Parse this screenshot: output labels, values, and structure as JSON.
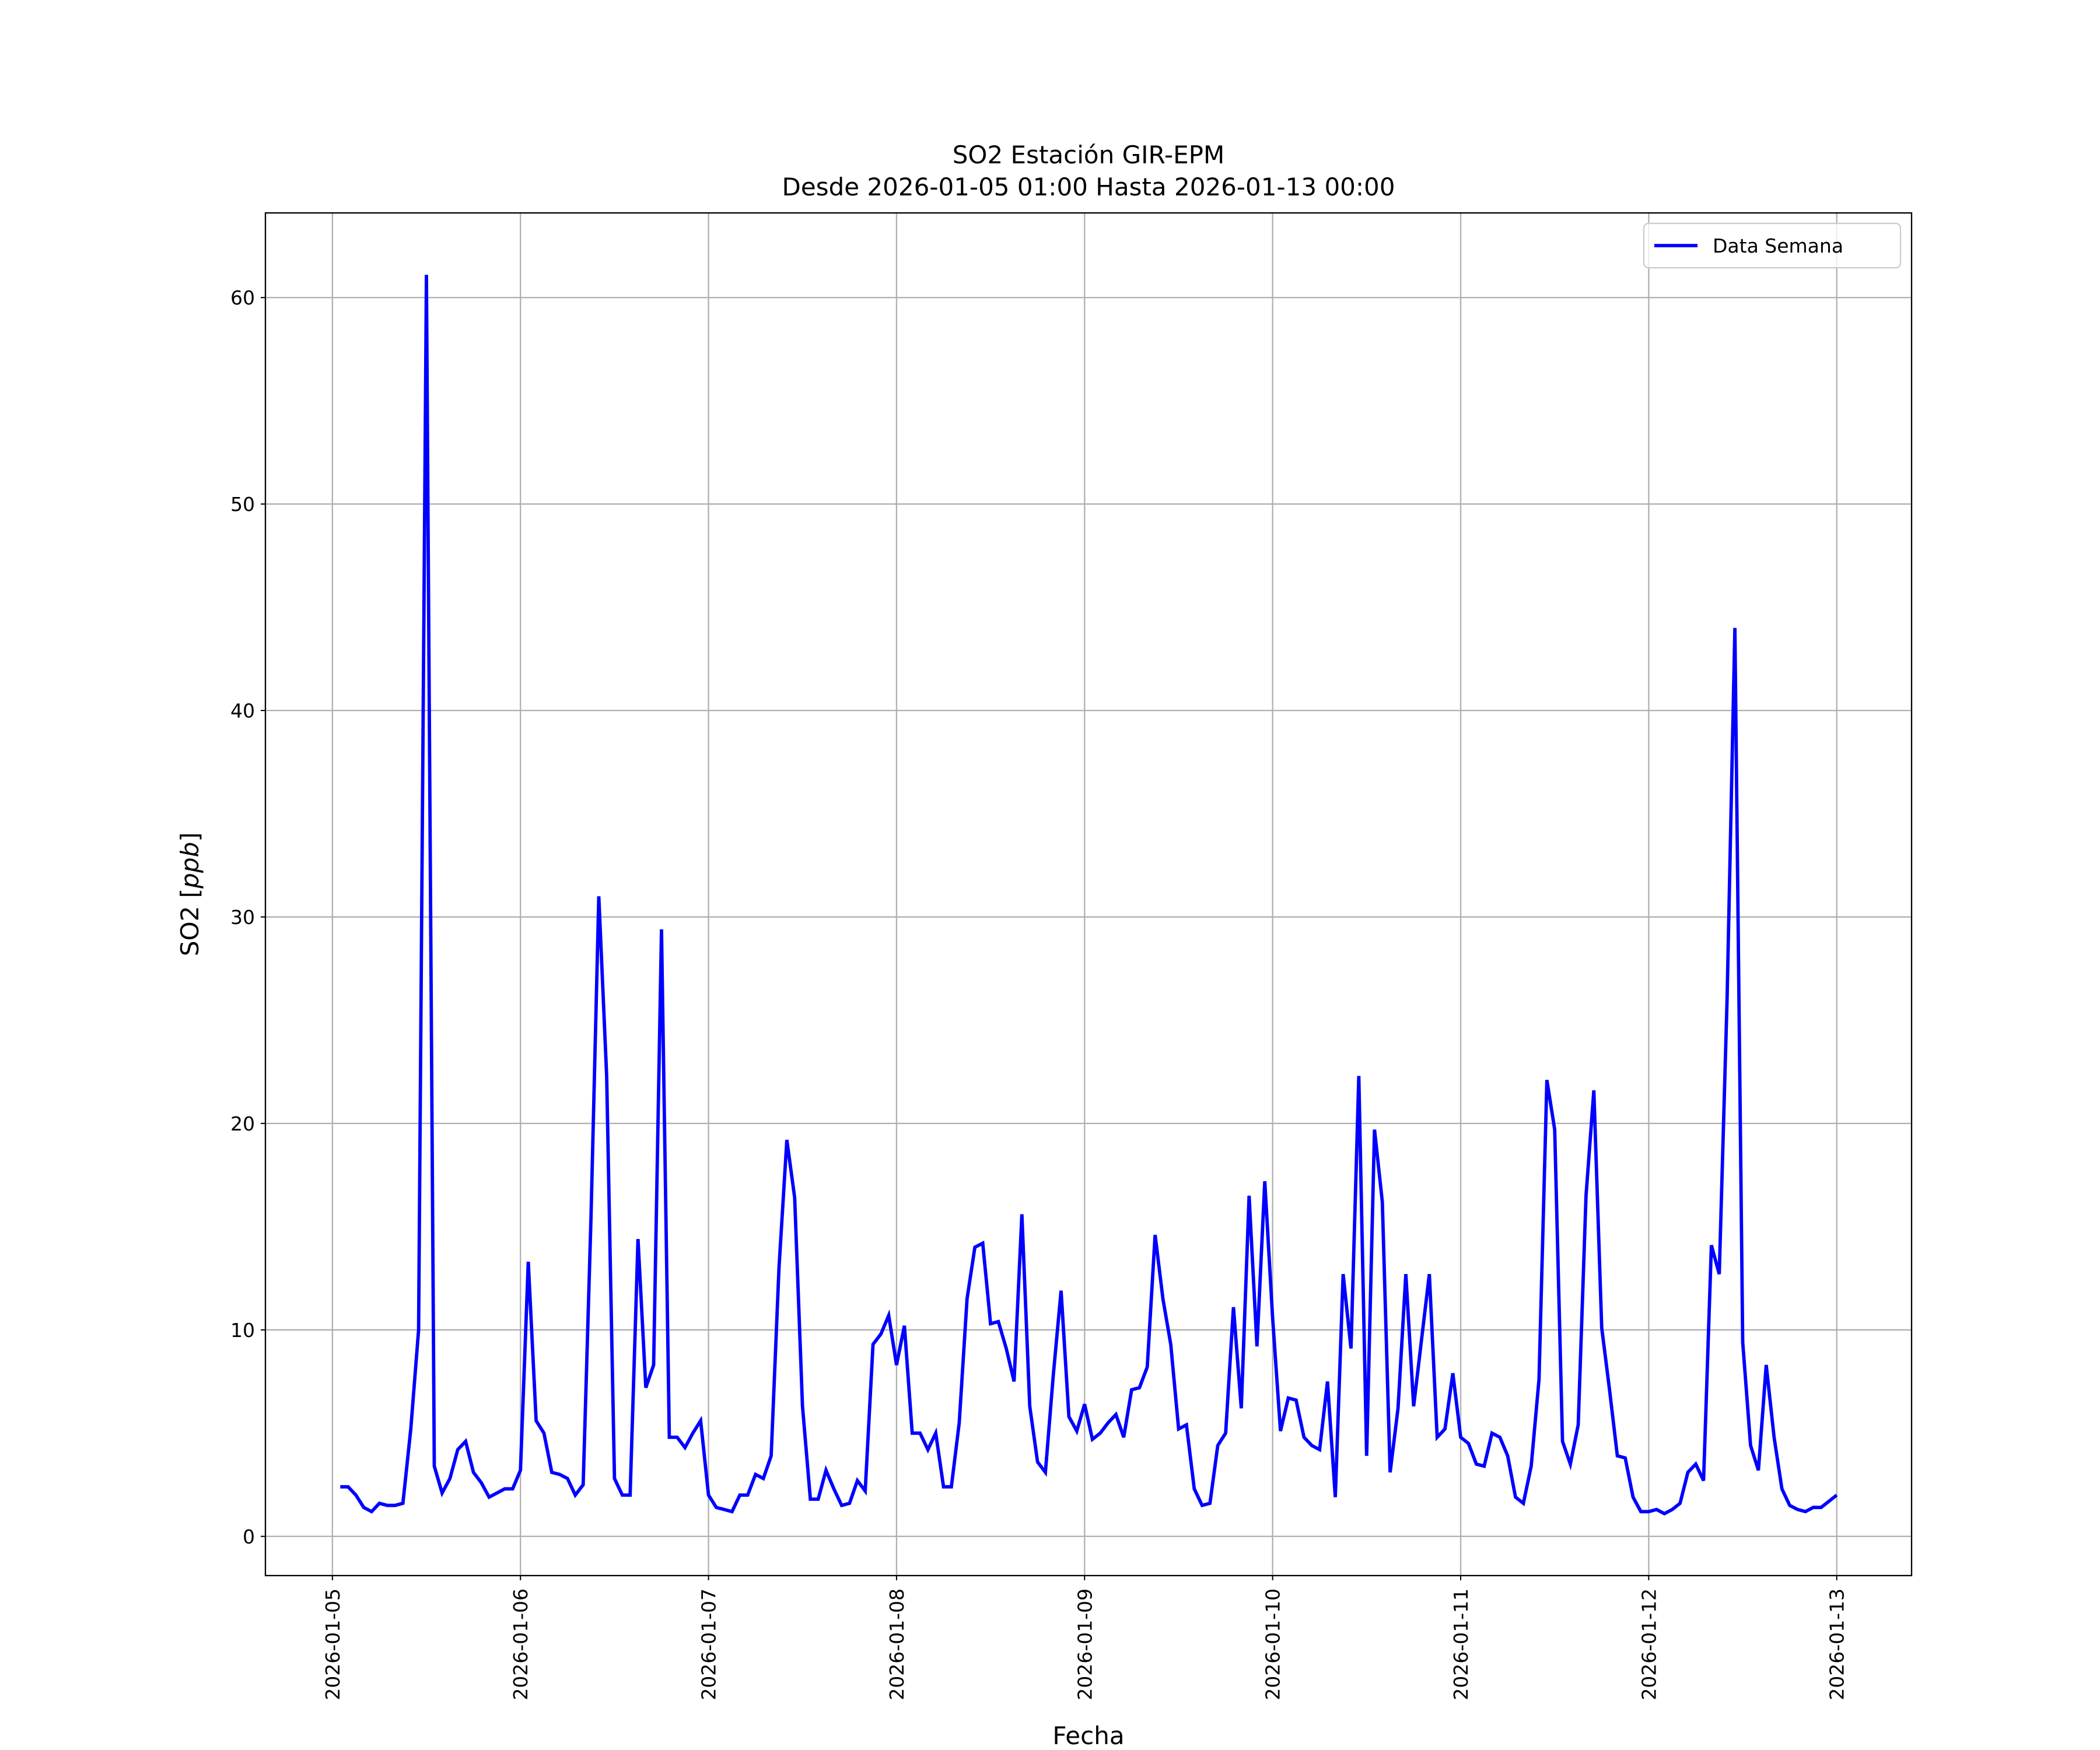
{
  "chart_data": {
    "type": "line",
    "title": "SO2 Estación GIR-EPM",
    "subtitle": "Desde 2026-01-05 01:00 Hasta 2026-01-13 00:00",
    "xlabel": "Fecha",
    "ylabel_main": "SO2 [",
    "ylabel_unit": "ppb",
    "ylabel_close": "]",
    "grid": true,
    "legend_position": "top-right",
    "ylim": [
      -1.9,
      64.1
    ],
    "xlim_hours_from_start": [
      -9.55,
      200.55
    ],
    "y_ticks": [
      0,
      10,
      20,
      30,
      40,
      50,
      60
    ],
    "y_tick_labels": [
      "0",
      "10",
      "20",
      "30",
      "40",
      "50",
      "60"
    ],
    "x_ticks_hours_from_start": [
      -1,
      23,
      47,
      71,
      95,
      119,
      143,
      167,
      191
    ],
    "x_tick_labels": [
      "2026-01-05",
      "2026-01-06",
      "2026-01-07",
      "2026-01-08",
      "2026-01-09",
      "2026-01-10",
      "2026-01-11",
      "2026-01-12",
      "2026-01-13"
    ],
    "series": [
      {
        "name": "Data Semana",
        "color": "#0000ff",
        "start": "2026-01-05 01:00",
        "interval_hours": 1,
        "values": [
          2.4,
          2.4,
          2.0,
          1.4,
          1.2,
          1.6,
          1.5,
          1.5,
          1.6,
          5.2,
          10.0,
          61.1,
          3.4,
          2.1,
          2.8,
          4.2,
          4.6,
          3.1,
          2.6,
          1.9,
          2.1,
          2.3,
          2.3,
          3.2,
          13.3,
          5.6,
          5.0,
          3.1,
          3.0,
          2.8,
          2.0,
          2.5,
          15.4,
          31.0,
          22.3,
          2.8,
          2.0,
          2.0,
          14.4,
          7.2,
          8.3,
          29.4,
          4.8,
          4.8,
          4.3,
          5.0,
          5.6,
          2.0,
          1.4,
          1.3,
          1.2,
          2.0,
          2.0,
          3.0,
          2.8,
          3.9,
          13.0,
          19.2,
          16.4,
          6.3,
          1.8,
          1.8,
          3.2,
          2.3,
          1.5,
          1.6,
          2.7,
          2.2,
          9.3,
          9.8,
          10.7,
          8.3,
          10.2,
          5.0,
          5.0,
          4.2,
          5.0,
          2.4,
          2.4,
          5.5,
          11.5,
          14.0,
          14.2,
          10.3,
          10.4,
          9.1,
          7.5,
          15.6,
          6.3,
          3.6,
          3.1,
          7.8,
          11.9,
          5.8,
          5.1,
          6.4,
          4.7,
          5.0,
          5.5,
          5.9,
          4.8,
          7.1,
          7.2,
          8.2,
          14.6,
          11.5,
          9.3,
          5.2,
          5.4,
          2.3,
          1.5,
          1.6,
          4.4,
          5.0,
          11.1,
          6.2,
          16.5,
          9.2,
          17.2,
          10.6,
          5.1,
          6.7,
          6.6,
          4.8,
          4.4,
          4.2,
          7.5,
          1.9,
          12.7,
          9.1,
          22.3,
          3.9,
          19.7,
          16.2,
          3.1,
          6.2,
          12.7,
          6.3,
          9.5,
          12.7,
          4.8,
          5.2,
          7.9,
          4.8,
          4.5,
          3.5,
          3.4,
          5.0,
          4.8,
          3.9,
          1.9,
          1.6,
          3.4,
          7.6,
          22.1,
          19.7,
          4.6,
          3.5,
          5.4,
          16.5,
          21.6,
          10.1,
          7.1,
          3.9,
          3.8,
          1.9,
          1.2,
          1.2,
          1.3,
          1.1,
          1.3,
          1.6,
          3.1,
          3.5,
          2.7,
          14.1,
          12.7,
          26.0,
          44.0,
          9.4,
          4.4,
          3.2,
          8.3,
          4.8,
          2.3,
          1.5,
          1.3,
          1.2,
          1.4,
          1.4,
          1.7,
          2.0
        ]
      }
    ]
  }
}
